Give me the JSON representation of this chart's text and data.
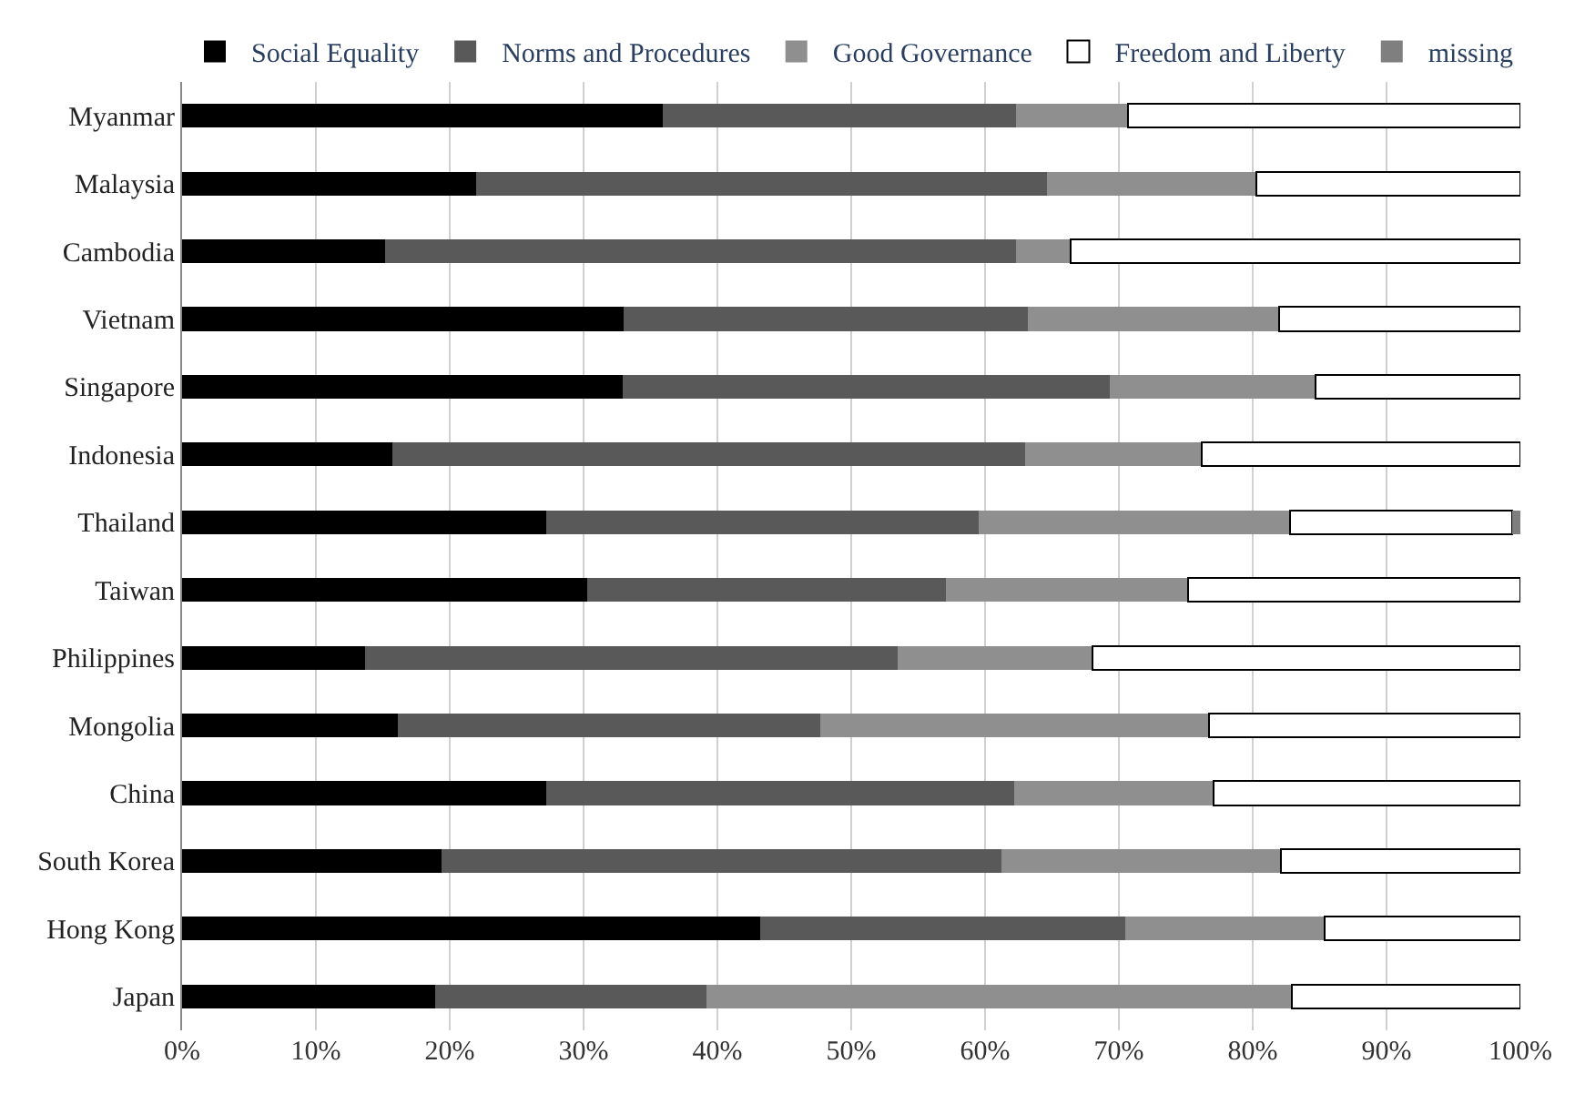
{
  "chart_data": {
    "type": "bar",
    "orientation": "horizontal",
    "stacked": true,
    "categories": [
      "Myanmar",
      "Malaysia",
      "Cambodia",
      "Vietnam",
      "Singapore",
      "Indonesia",
      "Thailand",
      "Taiwan",
      "Philippines",
      "Mongolia",
      "China",
      "South Korea",
      "Hong Kong",
      "Japan"
    ],
    "series": [
      {
        "name": "Social Equality",
        "color": "#000000",
        "values": [
          35.9,
          22.0,
          15.2,
          33.0,
          32.9,
          15.7,
          27.2,
          30.3,
          13.7,
          16.1,
          27.2,
          19.4,
          43.2,
          18.9
        ]
      },
      {
        "name": "Norms and Procedures",
        "color": "#595959",
        "values": [
          26.4,
          42.6,
          47.1,
          30.2,
          36.4,
          47.3,
          32.3,
          26.8,
          39.8,
          31.6,
          35.0,
          41.8,
          27.3,
          20.3
        ]
      },
      {
        "name": "Good Governance",
        "color": "#8f8f8f",
        "values": [
          8.4,
          15.7,
          4.1,
          18.8,
          15.4,
          13.2,
          23.3,
          18.1,
          14.5,
          29.0,
          14.9,
          20.9,
          14.9,
          43.7
        ]
      },
      {
        "name": "Freedom and Liberty",
        "color": "#ffffff",
        "values": [
          29.3,
          19.7,
          33.6,
          18.0,
          15.3,
          23.8,
          16.6,
          24.8,
          32.0,
          23.3,
          22.9,
          17.9,
          14.6,
          17.1
        ]
      },
      {
        "name": "missing",
        "color": "#7f7f7f",
        "values": [
          null,
          null,
          null,
          null,
          null,
          null,
          0.6,
          null,
          null,
          null,
          null,
          null,
          null,
          null
        ]
      }
    ],
    "xlim": [
      0,
      100
    ],
    "xticks": [
      {
        "value": 0,
        "label": "0%"
      },
      {
        "value": 10,
        "label": "10%"
      },
      {
        "value": 20,
        "label": "20%"
      },
      {
        "value": 30,
        "label": "30%"
      },
      {
        "value": 40,
        "label": "40%"
      },
      {
        "value": 50,
        "label": "50%"
      },
      {
        "value": 60,
        "label": "60%"
      },
      {
        "value": 70,
        "label": "70%"
      },
      {
        "value": 80,
        "label": "80%"
      },
      {
        "value": 90,
        "label": "90%"
      },
      {
        "value": 100,
        "label": "100%"
      }
    ],
    "grid": "x",
    "legend": "top"
  }
}
